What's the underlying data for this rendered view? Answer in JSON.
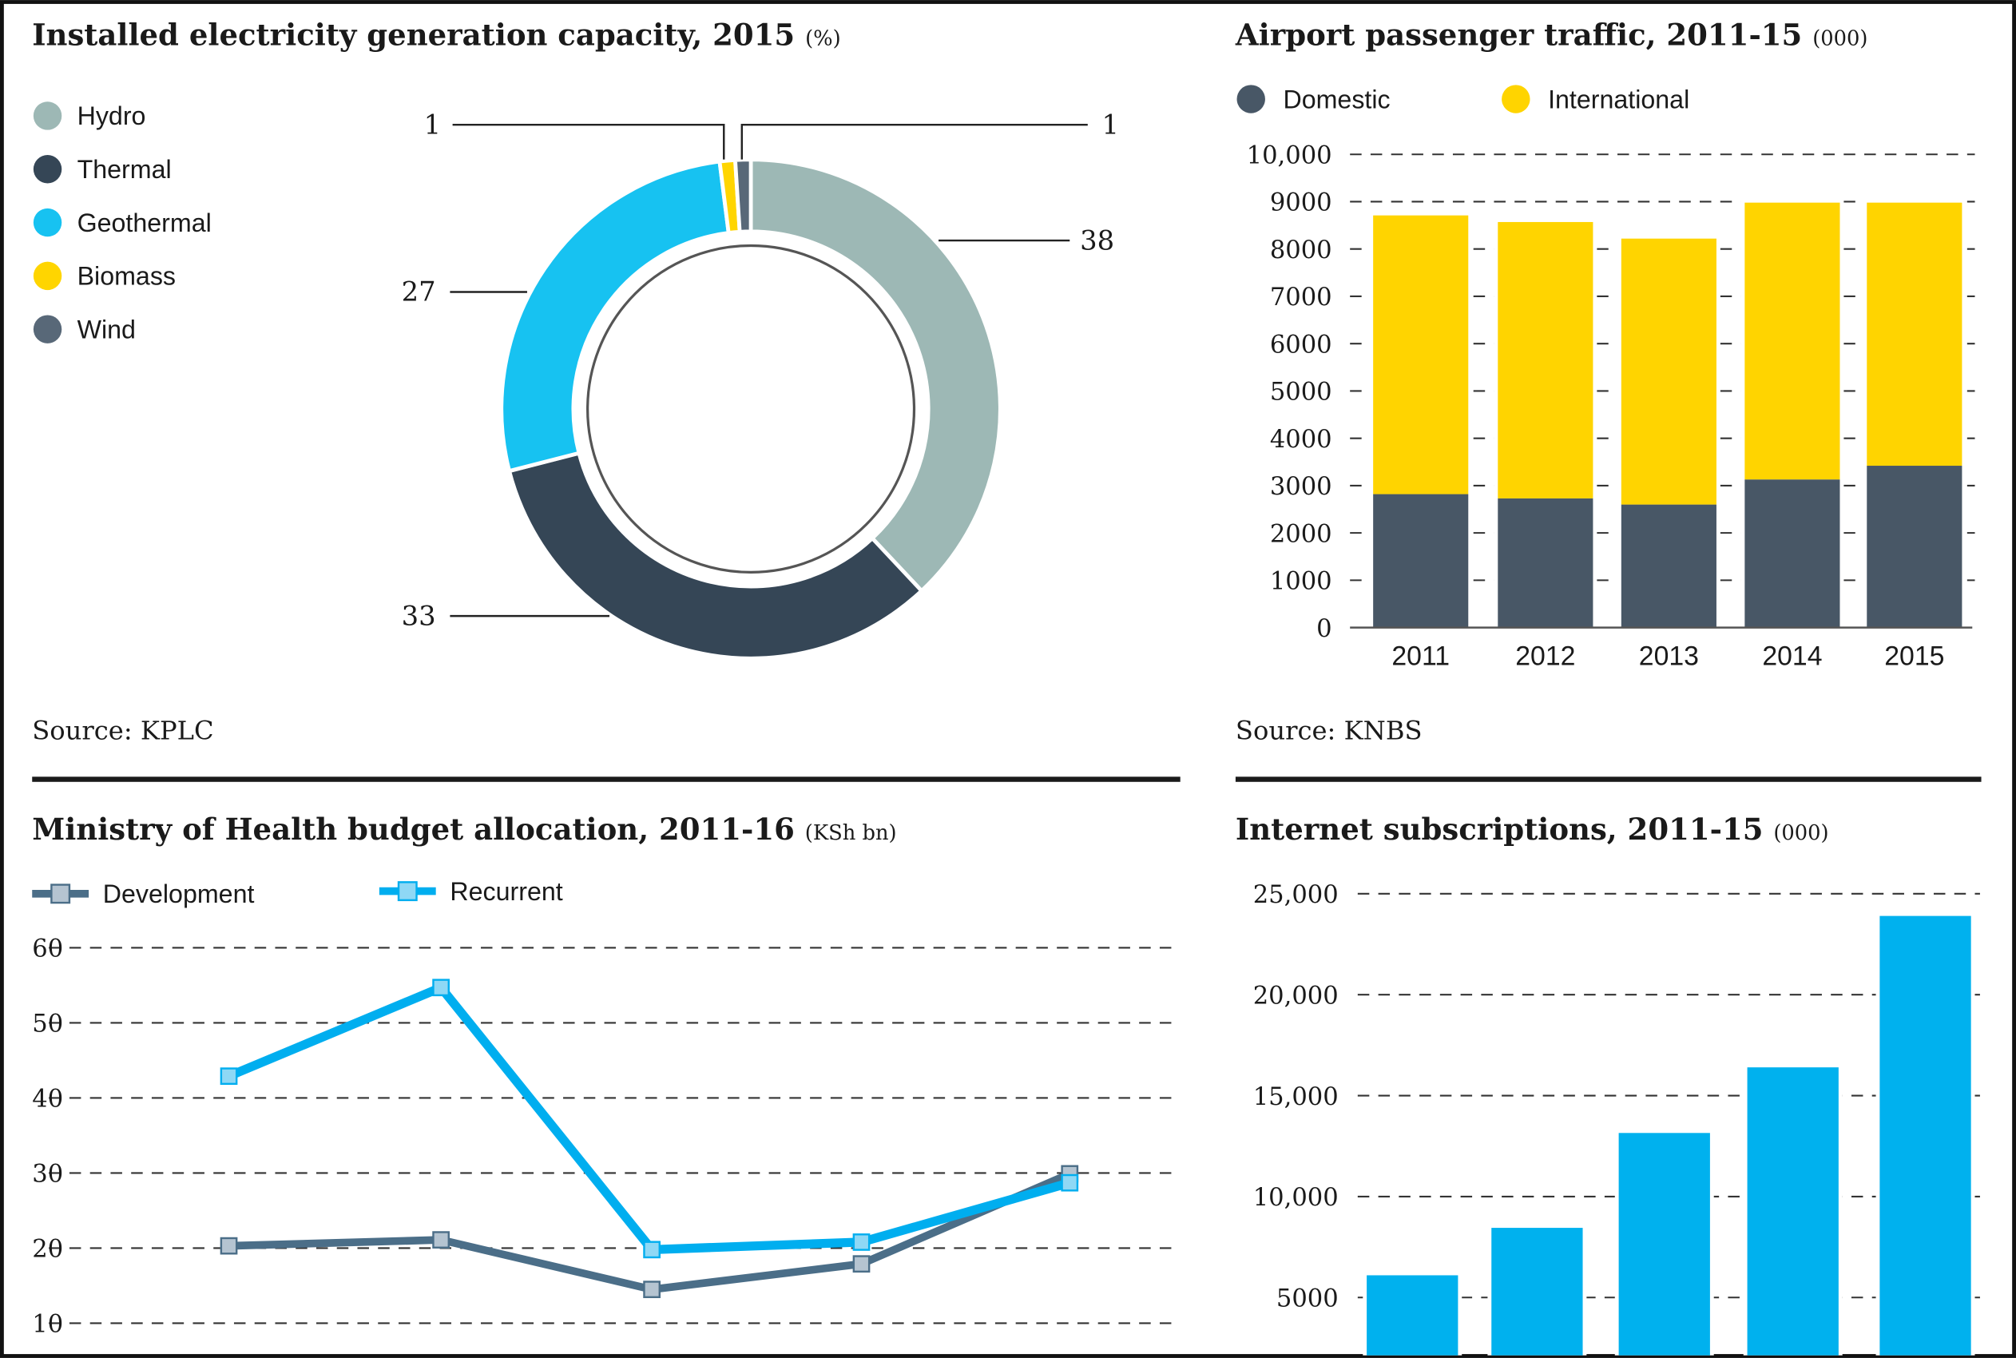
{
  "colors": {
    "hydro": "#9db8b5",
    "thermal": "#354656",
    "geothermal": "#17c2f1",
    "biomass": "#ffd500",
    "wind": "#586878",
    "domestic": "#485766",
    "international": "#ffd400",
    "development": "#4b6e88",
    "development_marker": "#b5c4d1",
    "recurrent": "#00aeef",
    "recurrent_marker": "#8fd8f5",
    "internet": "#00b1ee"
  },
  "chart_data": [
    {
      "type": "pie",
      "title": "Installed electricity generation capacity, 2015",
      "unit": "(%)",
      "categories": [
        "Hydro",
        "Thermal",
        "Geothermal",
        "Biomass",
        "Wind"
      ],
      "values": [
        38,
        33,
        27,
        1,
        1
      ],
      "data_labels": [
        "38",
        "33",
        "27",
        "1",
        "1"
      ],
      "legend": "left",
      "source": "Source: KPLC"
    },
    {
      "type": "bar",
      "stacked": true,
      "title": "Airport passenger traffic, 2011-15",
      "unit": "(000)",
      "categories": [
        "2011",
        "2012",
        "2013",
        "2014",
        "2015"
      ],
      "series": [
        {
          "name": "Domestic",
          "values": [
            2820,
            2730,
            2600,
            3130,
            3420
          ]
        },
        {
          "name": "International",
          "values": [
            5890,
            5840,
            5620,
            5850,
            5560
          ]
        }
      ],
      "yticks": [
        "0",
        "1000",
        "2000",
        "3000",
        "4000",
        "5000",
        "6000",
        "7000",
        "8000",
        "9000",
        "10,000"
      ],
      "ylim": [
        0,
        10000
      ],
      "grid": true,
      "legend": "top",
      "source": "Source: KNBS"
    },
    {
      "type": "line",
      "title": "Ministry of Health budget allocation, 2011-16",
      "unit": "(KSh bn)",
      "series": [
        {
          "name": "Development",
          "values": [
            20.3,
            21.1,
            14.5,
            17.9,
            29.9
          ]
        },
        {
          "name": "Recurrent",
          "values": [
            42.9,
            54.7,
            19.8,
            20.8,
            28.7
          ]
        }
      ],
      "yticks": [
        "10",
        "20",
        "30",
        "40",
        "50",
        "60"
      ],
      "ylim": [
        10,
        60
      ],
      "grid": true,
      "legend": "top"
    },
    {
      "type": "bar",
      "title": "Internet subscriptions, 2011-15",
      "unit": "(000)",
      "values": [
        6100,
        8450,
        13150,
        16400,
        23900
      ],
      "yticks": [
        "5000",
        "10,000",
        "15,000",
        "20,000",
        "25,000"
      ],
      "ylim": [
        0,
        25000
      ],
      "grid": true
    }
  ]
}
